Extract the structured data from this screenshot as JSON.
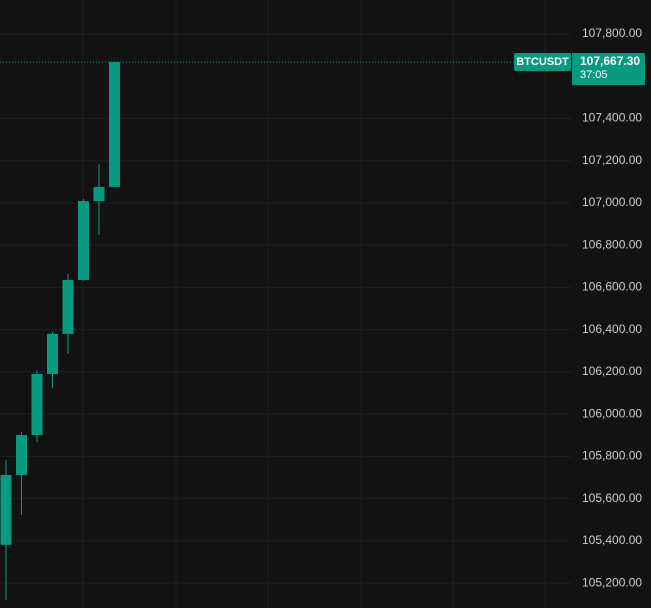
{
  "chart_data": {
    "type": "candlestick",
    "symbol": "BTCUSDT",
    "last_price": {
      "value": 107667.3,
      "label": "107,667.30"
    },
    "countdown": "37:05",
    "color": "#089981",
    "categories": [
      null,
      null,
      null,
      null,
      null,
      null,
      null,
      null
    ],
    "open": [
      105381,
      105712,
      105901,
      106190,
      106380,
      106635,
      107009,
      107076
    ],
    "high": [
      105783,
      105915,
      106209,
      106389,
      106664,
      107019,
      107185,
      107667.3
    ],
    "low": [
      105120,
      105523,
      105868,
      106124,
      106285,
      106631,
      106848,
      107076
    ],
    "close": [
      105712,
      105901,
      106190,
      106380,
      106635,
      107009,
      107076,
      107667.3
    ],
    "ylim": [
      105082,
      107961
    ],
    "yticks": [
      {
        "value": 105200,
        "label": "105,200.00"
      },
      {
        "value": 105400,
        "label": "105,400.00"
      },
      {
        "value": 105600,
        "label": "105,600.00"
      },
      {
        "value": 105800,
        "label": "105,800.00"
      },
      {
        "value": 106000,
        "label": "106,000.00"
      },
      {
        "value": 106200,
        "label": "106,200.00"
      },
      {
        "value": 106400,
        "label": "106,400.00"
      },
      {
        "value": 106600,
        "label": "106,600.00"
      },
      {
        "value": 106800,
        "label": "106,800.00"
      },
      {
        "value": 107000,
        "label": "107,000.00"
      },
      {
        "value": 107200,
        "label": "107,200.00"
      },
      {
        "value": 107400,
        "label": "107,400.00"
      },
      {
        "value": 107800,
        "label": "107,800.00"
      }
    ],
    "grid": true
  }
}
